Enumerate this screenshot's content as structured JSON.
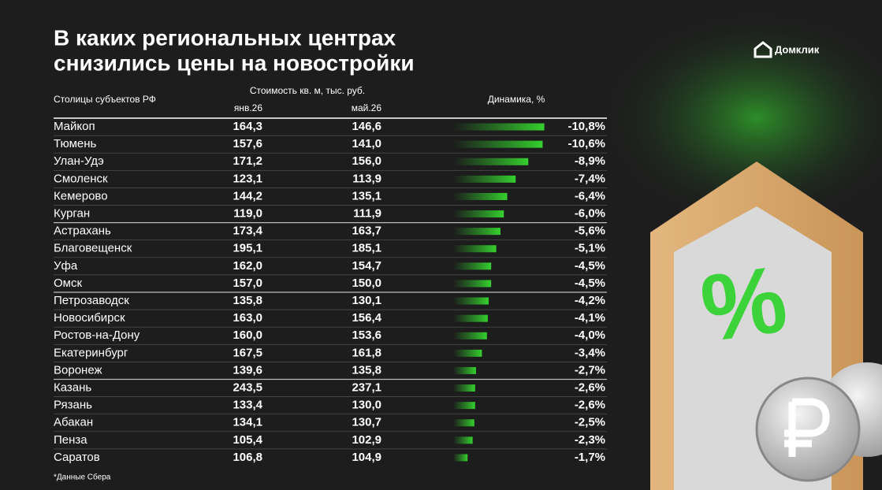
{
  "header": {
    "title_lines": [
      "В каких региональных центрах",
      "снизились цены на новостройки"
    ],
    "brand": "Домклик"
  },
  "table": {
    "columns": {
      "city": "Столицы субъектов РФ",
      "price": "Стоимость кв. м, тыс. руб.",
      "jan": "янв.26",
      "may": "май.26",
      "change": "Динамика, %"
    },
    "rows": [
      {
        "city": "Майкоп",
        "jan": "164,3",
        "may": "146,6",
        "change": {
          "value": -10.8,
          "label": "-10,8%"
        }
      },
      {
        "city": "Тюмень",
        "jan": "157,6",
        "may": "141,0",
        "change": {
          "value": -10.6,
          "label": "-10,6%"
        }
      },
      {
        "city": "Улан-Удэ",
        "jan": "171,2",
        "may": "156,0",
        "change": {
          "value": -8.9,
          "label": "-8,9%"
        }
      },
      {
        "city": "Смоленск",
        "jan": "123,1",
        "may": "113,9",
        "change": {
          "value": -7.4,
          "label": "-7,4%"
        }
      },
      {
        "city": "Кемерово",
        "jan": "144,2",
        "may": "135,1",
        "change": {
          "value": -6.4,
          "label": "-6,4%"
        }
      },
      {
        "city": "Курган",
        "jan": "119,0",
        "may": "111,9",
        "change": {
          "value": -6.0,
          "label": "-6,0%"
        }
      },
      {
        "city": "Астрахань",
        "jan": "173,4",
        "may": "163,7",
        "change": {
          "value": -5.6,
          "label": "-5,6%"
        }
      },
      {
        "city": "Благовещенск",
        "jan": "195,1",
        "may": "185,1",
        "change": {
          "value": -5.1,
          "label": "-5,1%"
        }
      },
      {
        "city": "Уфа",
        "jan": "162,0",
        "may": "154,7",
        "change": {
          "value": -4.5,
          "label": "-4,5%"
        }
      },
      {
        "city": "Омск",
        "jan": "157,0",
        "may": "150,0",
        "change": {
          "value": -4.5,
          "label": "-4,5%"
        }
      },
      {
        "city": "Петрозаводск",
        "jan": "135,8",
        "may": "130,1",
        "change": {
          "value": -4.2,
          "label": "-4,2%"
        }
      },
      {
        "city": "Новосибирск",
        "jan": "163,0",
        "may": "156,4",
        "change": {
          "value": -4.1,
          "label": "-4,1%"
        }
      },
      {
        "city": "Ростов-на-Дону",
        "jan": "160,0",
        "may": "153,6",
        "change": {
          "value": -4.0,
          "label": "-4,0%"
        }
      },
      {
        "city": "Екатеринбург",
        "jan": "167,5",
        "may": "161,8",
        "change": {
          "value": -3.4,
          "label": "-3,4%"
        }
      },
      {
        "city": "Воронеж",
        "jan": "139,6",
        "may": "135,8",
        "change": {
          "value": -2.7,
          "label": "-2,7%"
        }
      },
      {
        "city": "Казань",
        "jan": "243,5",
        "may": "237,1",
        "change": {
          "value": -2.6,
          "label": "-2,6%"
        }
      },
      {
        "city": "Рязань",
        "jan": "133,4",
        "may": "130,0",
        "change": {
          "value": -2.6,
          "label": "-2,6%"
        }
      },
      {
        "city": "Абакан",
        "jan": "134,1",
        "may": "130,7",
        "change": {
          "value": -2.5,
          "label": "-2,5%"
        }
      },
      {
        "city": "Пенза",
        "jan": "105,4",
        "may": "102,9",
        "change": {
          "value": -2.3,
          "label": "-2,3%"
        }
      },
      {
        "city": "Саратов",
        "jan": "106,8",
        "may": "104,9",
        "change": {
          "value": -1.7,
          "label": "-1,7%"
        }
      }
    ]
  },
  "footnote": "*Данные Сбера"
}
